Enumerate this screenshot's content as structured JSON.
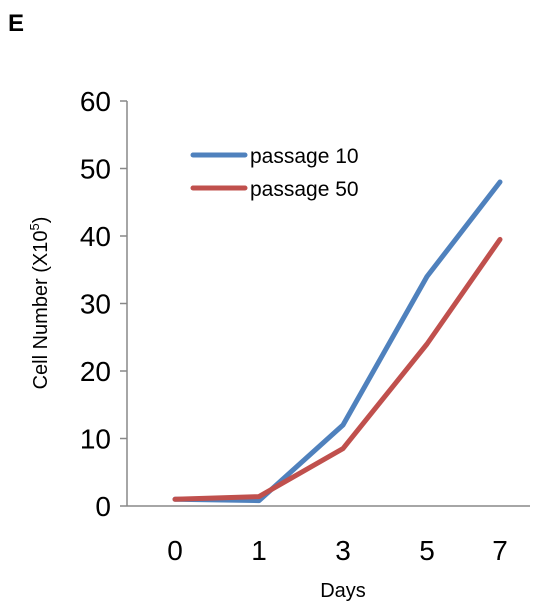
{
  "panel_label": "E",
  "chart_data": {
    "type": "line",
    "categories": [
      "0",
      "1",
      "3",
      "5",
      "7"
    ],
    "xlabel": "Days",
    "ylabel": "Cell Number (X10",
    "ylabel_sup": "5",
    "ylabel_close": ")",
    "ylim": [
      0,
      60
    ],
    "yticks": [
      0,
      10,
      20,
      30,
      40,
      50,
      60
    ],
    "grid": false,
    "legend_position": "top-left",
    "series": [
      {
        "name": "passage 10",
        "color": "#4f81bd",
        "values": [
          1,
          0.8,
          12,
          34,
          48
        ]
      },
      {
        "name": "passage 50",
        "color": "#c0504d",
        "values": [
          1,
          1.4,
          8.5,
          24,
          39.5
        ]
      }
    ]
  }
}
